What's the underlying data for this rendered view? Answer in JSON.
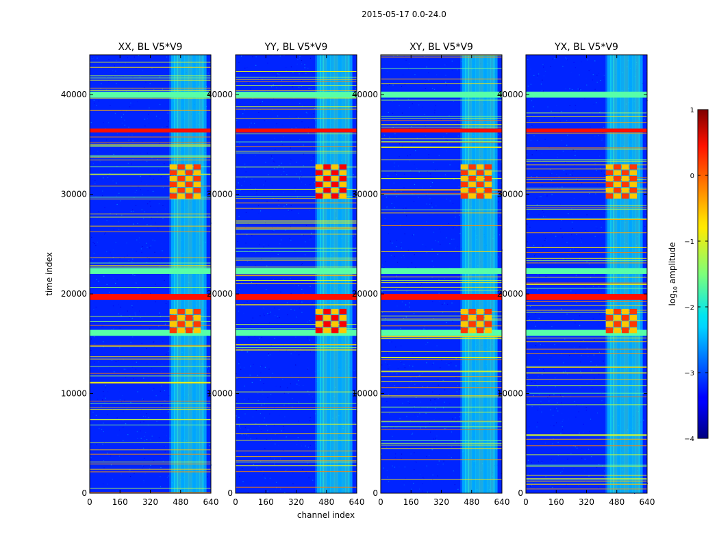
{
  "chart_data": {
    "type": "heatmap",
    "suptitle": "2015-05-17 0.0-24.0",
    "xlabel": "channel index",
    "ylabel": "time index",
    "xlim": [
      0,
      640
    ],
    "ylim": [
      0,
      44000
    ],
    "xticks": [
      0,
      160,
      320,
      480,
      640
    ],
    "yticks": [
      0,
      10000,
      20000,
      30000,
      40000
    ],
    "panels": [
      {
        "title": "XX, BL V5*V9",
        "polarization": "XX"
      },
      {
        "title": "YY, BL V5*V9",
        "polarization": "YY"
      },
      {
        "title": "XY, BL V5*V9",
        "polarization": "XY"
      },
      {
        "title": "YX, BL V5*V9",
        "polarization": "YX"
      }
    ],
    "colorbar": {
      "label": "log10 amplitude",
      "label_main": "log",
      "label_sub": "10",
      "label_rest": " amplitude",
      "range": [
        -4,
        1
      ],
      "ticks": [
        1,
        0,
        -1,
        -2,
        -3,
        -4
      ],
      "tick_labels": [
        "1",
        "0",
        "−1",
        "−2",
        "−3",
        "−4"
      ],
      "colormap": "jet"
    },
    "features": {
      "rfi_channel_range": [
        420,
        600
      ],
      "strong_time_bands": [
        [
          39700,
          40300
        ],
        [
          36200,
          36600
        ],
        [
          22000,
          22600
        ],
        [
          19400,
          20000
        ],
        [
          15800,
          16400
        ]
      ],
      "interference_blocks": [
        [
          29500,
          33000
        ],
        [
          16000,
          18500
        ]
      ]
    }
  }
}
